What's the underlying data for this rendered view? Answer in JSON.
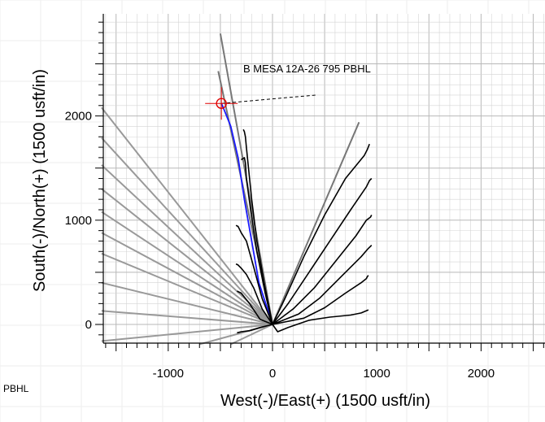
{
  "chart_data": {
    "type": "line",
    "xlabel": "West(-)/East(+) (1500 usft/in)",
    "ylabel": "South(-)/North(+) (1500 usft/in)",
    "xlim": [
      -1620,
      2620
    ],
    "ylim": [
      -190,
      2960
    ],
    "x_ticks": [
      -1000,
      0,
      1000,
      2000
    ],
    "y_ticks": [
      0,
      1000,
      2000
    ],
    "x_tick_labels": [
      "-1000",
      "0",
      "1000",
      "2000"
    ],
    "y_tick_labels": [
      "0",
      "1000",
      "2000"
    ],
    "grid": true,
    "annotations": [
      {
        "text": "B MESA 12A-26 795 PBHL",
        "x": 490,
        "y": 2200,
        "target_x": -490,
        "target_y": 2120
      }
    ],
    "side_label": "PBHL",
    "target_marker": {
      "x": -490,
      "y": 2120,
      "color": "#e00000"
    },
    "colors": {
      "planned_path": "#1a1aff",
      "actual": "#000000",
      "reference": "#999999",
      "reference_dark": "#777777",
      "grid": "#d4d4d4"
    },
    "reference_lines": [
      {
        "x": [
          0,
          -1640
        ],
        "y": [
          0,
          2080
        ]
      },
      {
        "x": [
          0,
          -1640
        ],
        "y": [
          0,
          1790
        ]
      },
      {
        "x": [
          0,
          -1640
        ],
        "y": [
          0,
          1530
        ]
      },
      {
        "x": [
          0,
          -1640
        ],
        "y": [
          0,
          1300
        ]
      },
      {
        "x": [
          0,
          -1640
        ],
        "y": [
          0,
          1080
        ]
      },
      {
        "x": [
          0,
          -1640
        ],
        "y": [
          0,
          880
        ]
      },
      {
        "x": [
          0,
          -1640
        ],
        "y": [
          0,
          680
        ]
      },
      {
        "x": [
          0,
          -1640
        ],
        "y": [
          0,
          400
        ]
      },
      {
        "x": [
          0,
          -1640
        ],
        "y": [
          0,
          130
        ]
      },
      {
        "x": [
          0,
          -1640
        ],
        "y": [
          0,
          -160
        ]
      },
      {
        "x": [
          0,
          -700
        ],
        "y": [
          0,
          -190
        ]
      },
      {
        "x": [
          0,
          -400
        ],
        "y": [
          0,
          -190
        ]
      },
      {
        "x": [
          0,
          -500
        ],
        "y": [
          0,
          2790
        ]
      },
      {
        "x": [
          0,
          -520
        ],
        "y": [
          0,
          2430
        ]
      },
      {
        "x": [
          0,
          830
        ],
        "y": [
          0,
          1940
        ]
      }
    ],
    "series": [
      {
        "x": [
          0,
          -130,
          -200,
          -270,
          -330,
          -400,
          -460,
          -490
        ],
        "y": [
          0,
          400,
          800,
          1200,
          1600,
          1900,
          2050,
          2120
        ]
      },
      {
        "x": [
          0,
          -80,
          -150,
          -200,
          -230,
          -250,
          -260,
          -270,
          -280
        ],
        "y": [
          0,
          400,
          800,
          1200,
          1500,
          1700,
          1800,
          1850,
          1870
        ]
      },
      {
        "x": [
          0,
          -70,
          -150,
          -210,
          -250,
          -260,
          -270,
          -300
        ],
        "y": [
          0,
          300,
          700,
          1100,
          1400,
          1550,
          1600,
          1580
        ]
      },
      {
        "x": [
          0,
          -100,
          -180,
          -250,
          -300,
          -330,
          -350
        ],
        "y": [
          0,
          250,
          550,
          800,
          880,
          940,
          950
        ]
      },
      {
        "x": [
          0,
          -100,
          -180,
          -250,
          -300,
          -330,
          -350
        ],
        "y": [
          0,
          150,
          350,
          480,
          540,
          570,
          580
        ]
      },
      {
        "x": [
          0,
          -120,
          -220,
          -300,
          -340
        ],
        "y": [
          0,
          50,
          200,
          300,
          320
        ]
      },
      {
        "x": [
          0,
          -120,
          -220,
          -300,
          -340
        ],
        "y": [
          0,
          -30,
          -60,
          -70,
          -80
        ]
      },
      {
        "x": [
          0,
          120,
          300,
          500,
          700,
          880,
          910,
          930
        ],
        "y": [
          0,
          250,
          650,
          1050,
          1400,
          1620,
          1680,
          1730
        ]
      },
      {
        "x": [
          0,
          150,
          350,
          550,
          750,
          900,
          930,
          950
        ],
        "y": [
          0,
          200,
          500,
          800,
          1100,
          1320,
          1380,
          1400
        ]
      },
      {
        "x": [
          0,
          200,
          400,
          600,
          800,
          900,
          940,
          950
        ],
        "y": [
          0,
          150,
          350,
          600,
          850,
          1000,
          1030,
          1050
        ]
      },
      {
        "x": [
          0,
          250,
          450,
          650,
          850,
          920,
          940,
          950
        ],
        "y": [
          0,
          100,
          250,
          450,
          650,
          730,
          750,
          760
        ]
      },
      {
        "x": [
          0,
          300,
          500,
          700,
          850,
          900,
          910,
          920
        ],
        "y": [
          0,
          60,
          160,
          300,
          400,
          440,
          460,
          470
        ]
      },
      {
        "x": [
          0,
          50,
          150,
          350,
          550,
          750,
          850,
          920
        ],
        "y": [
          0,
          -70,
          -30,
          40,
          70,
          90,
          110,
          140
        ]
      }
    ]
  }
}
